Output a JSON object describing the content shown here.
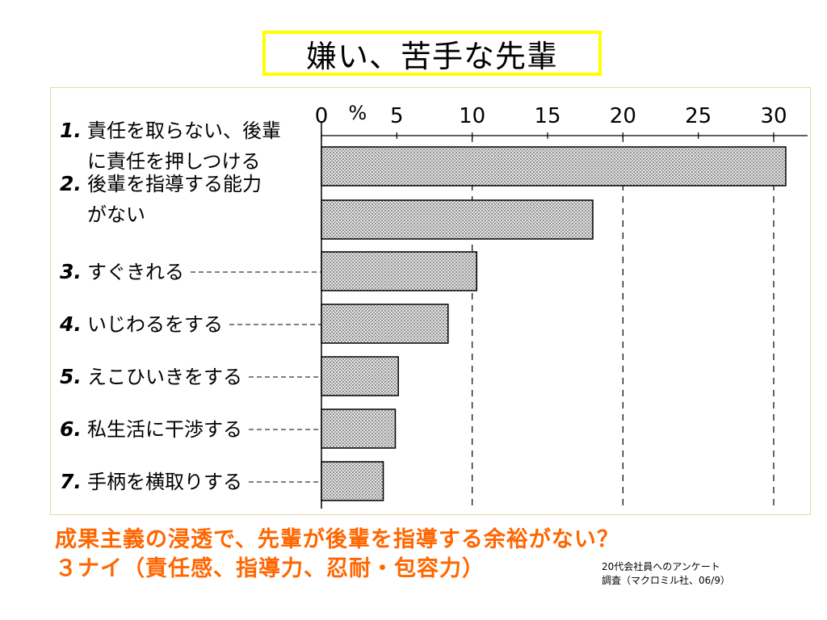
{
  "slide": {
    "title": "嫌い、苦手な先輩",
    "footer_line1": "成果主義の浸透で、先輩が後輩を指導する余裕がない？",
    "footer_line2": "３ナイ（責任感、指導力、忍耐・包容力）",
    "source_line1": "20代会社員へのアンケート",
    "source_line2": "調査（マクロミル社、06/9）"
  },
  "colors": {
    "title_border": "#ffff00",
    "footer_text": "#ff6600",
    "bar_fill": "#c8c8c8"
  },
  "chart_data": {
    "type": "bar",
    "orientation": "horizontal",
    "axis_unit": "%",
    "xlim": [
      0,
      30
    ],
    "ticks": [
      "0",
      "5",
      "10",
      "15",
      "20",
      "25",
      "30"
    ],
    "gridlines": "dashed vertical at 10, 20, 30",
    "categories": [
      {
        "num": "1.",
        "lines": [
          "責任を取らない、後輩",
          "に責任を押しつける"
        ]
      },
      {
        "num": "2.",
        "lines": [
          "後輩を指導する能力",
          "がない"
        ]
      },
      {
        "num": "3.",
        "lines": [
          "すぐきれる"
        ]
      },
      {
        "num": "4.",
        "lines": [
          "いじわるをする"
        ]
      },
      {
        "num": "5.",
        "lines": [
          "えこひいきをする"
        ]
      },
      {
        "num": "6.",
        "lines": [
          "私生活に干渉する"
        ]
      },
      {
        "num": "7.",
        "lines": [
          "手柄を横取りする"
        ]
      }
    ],
    "values": [
      30.8,
      18.0,
      10.3,
      8.4,
      5.1,
      4.9,
      4.1
    ]
  }
}
